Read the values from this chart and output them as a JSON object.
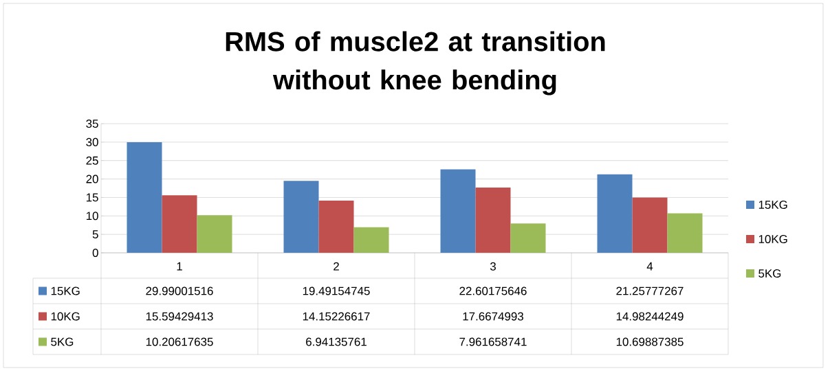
{
  "chart_data": {
    "type": "bar",
    "title": "RMS of muscle2 at transition without knee bending",
    "categories": [
      "1",
      "2",
      "3",
      "4"
    ],
    "series": [
      {
        "name": "15KG",
        "color": "#4f81bd",
        "values": [
          29.99001516,
          19.49154745,
          22.60175646,
          21.25777267
        ]
      },
      {
        "name": "10KG",
        "color": "#c0504d",
        "values": [
          15.59429413,
          14.15226617,
          17.6674993,
          14.98244249
        ]
      },
      {
        "name": "5KG",
        "color": "#9bbb59",
        "values": [
          10.20617635,
          6.94135761,
          7.961658741,
          10.69887385
        ]
      }
    ],
    "ylim": [
      0,
      35
    ],
    "yticks": [
      0,
      5,
      10,
      15,
      20,
      25,
      30,
      35
    ],
    "grid": "y",
    "legend": "right",
    "data_labels": true
  }
}
